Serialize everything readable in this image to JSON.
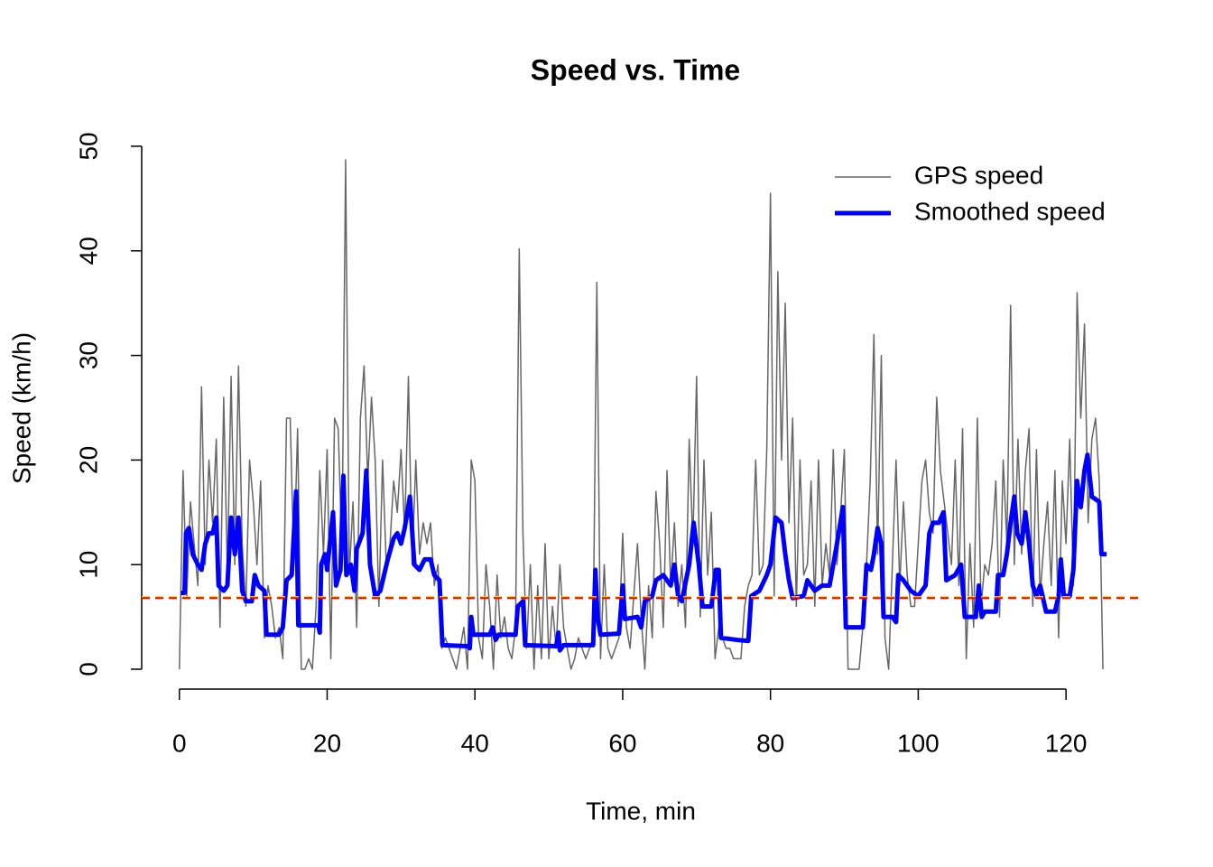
{
  "chart_data": {
    "type": "line",
    "title": "Speed vs. Time",
    "x_label": "Time, min",
    "y_label": "Speed (km/h)",
    "xlim": [
      -5.1,
      130
    ],
    "ylim": [
      -1.9,
      50.6
    ],
    "xticks": [
      0,
      20,
      40,
      60,
      80,
      100,
      120
    ],
    "yticks": [
      0,
      10,
      20,
      30,
      40,
      50
    ],
    "legend": "topright",
    "series": [
      {
        "name": "GPS speed",
        "color": "#666666",
        "width": 1.5,
        "x": [
          0,
          0.5,
          1,
          1.5,
          2,
          2.5,
          3,
          3.5,
          4,
          4.5,
          5,
          5.5,
          6,
          6.5,
          7,
          7.5,
          8,
          8.5,
          9,
          9.5,
          10,
          10.5,
          11,
          11.5,
          12,
          12.5,
          13,
          13.5,
          14,
          14.5,
          15,
          15.5,
          16,
          16.5,
          17,
          17.5,
          18,
          18.5,
          19,
          19.5,
          20,
          20.5,
          21,
          21.5,
          22,
          22.5,
          23,
          23.5,
          24,
          24.5,
          25,
          25.5,
          26,
          26.5,
          27,
          27.5,
          28,
          28.5,
          29,
          29.5,
          30,
          30.5,
          31,
          31.5,
          32,
          32.5,
          33,
          33.5,
          34,
          34.5,
          35,
          35.5,
          36,
          36.5,
          37,
          37.5,
          38,
          38.5,
          39,
          39.5,
          40,
          40.5,
          41,
          41.5,
          42,
          42.5,
          43,
          43.5,
          44,
          44.5,
          45,
          45.5,
          46,
          46.5,
          47,
          47.5,
          48,
          48.5,
          49,
          49.5,
          50,
          50.5,
          51,
          51.5,
          52,
          52.5,
          53,
          53.5,
          54,
          54.5,
          55,
          55.5,
          56,
          56.5,
          57,
          57.5,
          58,
          58.5,
          59,
          59.5,
          60,
          60.5,
          61,
          61.5,
          62,
          62.5,
          63,
          63.5,
          64,
          64.5,
          65,
          65.5,
          66,
          66.5,
          67,
          67.5,
          68,
          68.5,
          69,
          69.5,
          70,
          70.5,
          71,
          71.5,
          72,
          72.5,
          73,
          73.5,
          74,
          74.5,
          75,
          75.5,
          76,
          76.5,
          77,
          77.5,
          78,
          78.5,
          79,
          79.5,
          80,
          80.5,
          81,
          81.5,
          82,
          82.5,
          83,
          83.5,
          84,
          84.5,
          85,
          85.5,
          86,
          86.5,
          87,
          87.5,
          88,
          88.5,
          89,
          89.5,
          90,
          90.5,
          91,
          91.5,
          92,
          92.5,
          93,
          93.5,
          94,
          94.5,
          95,
          95.5,
          96,
          96.5,
          97,
          97.5,
          98,
          98.5,
          99,
          99.5,
          100,
          100.5,
          101,
          101.5,
          102,
          102.5,
          103,
          103.5,
          104,
          104.5,
          105,
          105.5,
          106,
          106.5,
          107,
          107.5,
          108,
          108.5,
          109,
          109.5,
          110,
          110.5,
          111,
          111.5,
          112,
          112.5,
          113,
          113.5,
          114,
          114.5,
          115,
          115.5,
          116,
          116.5,
          117,
          117.5,
          118,
          118.5,
          119,
          119.5,
          120,
          120.5,
          121,
          121.5,
          122,
          122.5,
          123,
          123.5,
          124,
          124.5,
          125
        ],
        "values": [
          0,
          19,
          7,
          16,
          12,
          8,
          27,
          10,
          20,
          14,
          22,
          4,
          26,
          9,
          28,
          10,
          29,
          12,
          6,
          20,
          16,
          10,
          18,
          3,
          8,
          6,
          3,
          4,
          1,
          24,
          24,
          10,
          23,
          0,
          0,
          1,
          0,
          6,
          19,
          11,
          21,
          1,
          24,
          23,
          11,
          48.7,
          9,
          16,
          4,
          24,
          29,
          18,
          26,
          20,
          6,
          20,
          10,
          12,
          18,
          15,
          21,
          13,
          28,
          10,
          20,
          11,
          14,
          12,
          14,
          8,
          10,
          2,
          3,
          2,
          1,
          0,
          2,
          4,
          0,
          20,
          18,
          3,
          1,
          10,
          6,
          0,
          9,
          3,
          5,
          2,
          1,
          4,
          40.2,
          13,
          2,
          10,
          0,
          8,
          1,
          12,
          1,
          6,
          2,
          10,
          4,
          2,
          0,
          1,
          3,
          2,
          1,
          2,
          3,
          37,
          1,
          10,
          2,
          1,
          2,
          3,
          13,
          4,
          2,
          7,
          12,
          5,
          0,
          8,
          3,
          17,
          12,
          4,
          19,
          8,
          14,
          6,
          10,
          4,
          22,
          12,
          28,
          5,
          20,
          9,
          15,
          1,
          4,
          3,
          2,
          2,
          1,
          1,
          1,
          6,
          8,
          9,
          20,
          9,
          10,
          21,
          45.5,
          7,
          38,
          20,
          35,
          14,
          24,
          6,
          20,
          9,
          10,
          18,
          6,
          20,
          8,
          12,
          9,
          21,
          10,
          15,
          21,
          0,
          0,
          0,
          0,
          4,
          10,
          18,
          32,
          11,
          30,
          3,
          0,
          10,
          20,
          8,
          16,
          9,
          6,
          6,
          12,
          18,
          20,
          15,
          13,
          26,
          19,
          16,
          13,
          10,
          20,
          8,
          23,
          1,
          12,
          4,
          24,
          6,
          10,
          9,
          12,
          18,
          5,
          20,
          12,
          34.8,
          10,
          22,
          11,
          19,
          23,
          6,
          21,
          7,
          12,
          16,
          8,
          19,
          3,
          18,
          12,
          22,
          8,
          36,
          24,
          33,
          14,
          22,
          24,
          18,
          0
        ]
      },
      {
        "name": "Smoothed speed",
        "color": "#0000ff",
        "width": 5,
        "x": [
          0.2,
          0.7,
          0.9,
          1.3,
          1.8,
          2.5,
          3,
          3.5,
          4,
          4.5,
          5,
          5.3,
          6,
          6.5,
          7,
          7.5,
          8,
          8.5,
          9,
          9.8,
          10.2,
          10.7,
          11.5,
          11.8,
          13.5,
          14,
          14.5,
          15.2,
          15.8,
          16.1,
          18,
          18.8,
          19,
          19.2,
          19.7,
          20,
          20.8,
          21.2,
          21.8,
          22.2,
          22.6,
          23.2,
          23.7,
          24,
          24.8,
          25.3,
          25.8,
          26.5,
          27.2,
          28.2,
          29,
          29.5,
          30,
          30.5,
          31.2,
          31.8,
          32.5,
          33.2,
          34,
          34.5,
          35.2,
          35.6,
          39,
          39.3,
          39.5,
          39.8,
          42,
          42.4,
          42.8,
          43.2,
          45.5,
          45.8,
          46.5,
          46.8,
          51,
          51.3,
          51.5,
          52,
          56,
          56.3,
          56.6,
          57,
          59.5,
          60,
          60.3,
          62,
          62.5,
          63,
          64,
          64.5,
          65.5,
          66.5,
          67,
          67.5,
          68,
          69,
          69.6,
          70.3,
          70.8,
          72,
          72.6,
          73,
          73.3,
          75.5,
          77,
          77.4,
          78.5,
          79.5,
          80,
          80.7,
          81.5,
          82,
          82.5,
          83,
          84.5,
          85,
          86,
          87,
          88,
          89,
          89.8,
          90.2,
          92.5,
          93,
          93.6,
          94,
          94.5,
          95,
          95.3,
          96.5,
          97,
          97.3,
          98,
          99,
          100,
          101,
          101.5,
          102,
          102.8,
          103.4,
          103.8,
          105,
          105.8,
          106.3,
          107.8,
          108.2,
          108.6,
          109,
          110.5,
          110.8,
          111.5,
          112,
          112.5,
          113,
          113.4,
          114,
          114.5,
          115,
          115.5,
          116,
          116.5,
          117.3,
          118.5,
          119,
          119.3,
          119.7,
          120.5,
          121,
          121.5,
          122,
          122.5,
          122.9,
          123.5,
          124.5,
          124.8,
          125.5
        ],
        "values": [
          7.3,
          7.3,
          13,
          13.5,
          11,
          10,
          9.5,
          12,
          13,
          13,
          14.5,
          8,
          7.5,
          8,
          14.5,
          11,
          14.5,
          7.5,
          6.5,
          6.5,
          9,
          8,
          7.5,
          3.3,
          3.3,
          4,
          8.5,
          9,
          17,
          4.2,
          4.2,
          4.2,
          3.5,
          10,
          11,
          9.5,
          15,
          8,
          9.5,
          18.5,
          9,
          10,
          7.5,
          11.5,
          13,
          19,
          10,
          7,
          7.5,
          10.5,
          12.5,
          13,
          12,
          13.5,
          16.5,
          10,
          9.5,
          10.5,
          10.5,
          9,
          8.5,
          2.3,
          2.2,
          2,
          5,
          3.3,
          3.3,
          4,
          2.8,
          3.3,
          3.3,
          6,
          6.5,
          2.3,
          2.2,
          3.5,
          1.8,
          2.3,
          2.3,
          9.5,
          5,
          3.3,
          3.4,
          8,
          4.8,
          5,
          4,
          6.5,
          7,
          8.5,
          9,
          8,
          10,
          7,
          6.5,
          10,
          14,
          10,
          6,
          6,
          9.5,
          9.5,
          3,
          2.8,
          2.7,
          7,
          7.5,
          9,
          10,
          14.5,
          14,
          11,
          8.5,
          6.8,
          7,
          8.5,
          7.5,
          8,
          8,
          12,
          15.5,
          4,
          4,
          10,
          9.5,
          11,
          13.5,
          12,
          5,
          5,
          4.5,
          9,
          8.5,
          7.5,
          7,
          8,
          13,
          14,
          14,
          15,
          8.5,
          9,
          10,
          5,
          5,
          8,
          5,
          5.5,
          5.5,
          9,
          9,
          11,
          14,
          16.5,
          13,
          12,
          15,
          12,
          8,
          7,
          8,
          5.5,
          5.5,
          7,
          10.5,
          7,
          7,
          9.5,
          18,
          15.5,
          19,
          20.5,
          16.5,
          16,
          11,
          11
        ]
      }
    ],
    "hlines": [
      {
        "value": 6.9,
        "color": "#ffd700"
      },
      {
        "value": 6.8,
        "color": "#ff0000"
      }
    ]
  }
}
